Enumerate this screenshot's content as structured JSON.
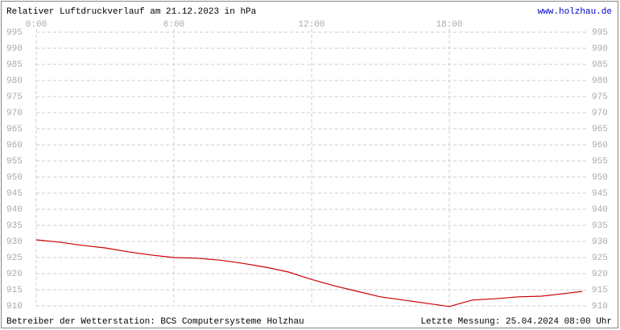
{
  "chart_data": {
    "type": "line",
    "title": "Relativer Luftdruckverlauf am 21.12.2023 in hPa",
    "site": "www.holzhau.de",
    "operator": "Betreiber der Wetterstation: BCS Computersysteme Holzhau",
    "last_measurement": "Letzte Messung: 25.04.2024 08:00 Uhr",
    "x": [
      0,
      1,
      2,
      3,
      4,
      5,
      6,
      7,
      8,
      9,
      10,
      11,
      12,
      13,
      14,
      15,
      16,
      17,
      18,
      19,
      20,
      21,
      22,
      23,
      23.8
    ],
    "series": [
      {
        "color": "#cc0000",
        "values": [
          930.5,
          929.8,
          928.8,
          928,
          926.8,
          925.8,
          925,
          924.8,
          924.2,
          923.2,
          922,
          920.5,
          918.2,
          916.2,
          914.5,
          912.8,
          911.8,
          910.8,
          909.8,
          911.8,
          912.2,
          912.8,
          913,
          913.8,
          914.5
        ]
      }
    ],
    "xlim": [
      0,
      24
    ],
    "xticks": [
      {
        "value": 0,
        "label": "0:00"
      },
      {
        "value": 6,
        "label": "6:00"
      },
      {
        "value": 12,
        "label": "12:00"
      },
      {
        "value": 18,
        "label": "18:00"
      }
    ],
    "ylim": [
      910,
      995
    ],
    "yticks": [
      910,
      915,
      920,
      925,
      930,
      935,
      940,
      945,
      950,
      955,
      960,
      965,
      970,
      975,
      980,
      985,
      990,
      995
    ],
    "grid": true
  }
}
